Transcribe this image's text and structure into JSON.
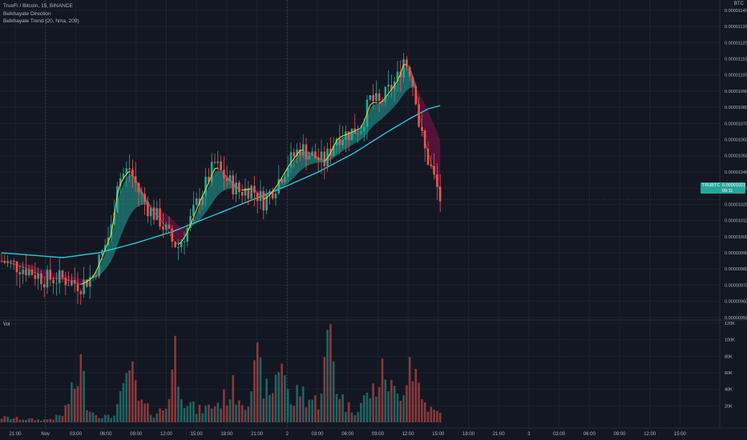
{
  "header": {
    "symbol_line": "TrueFi / Bitcoin, 15, BINANCE",
    "indicator_1": "Belkhayate Direction",
    "indicator_2": "Belkhayate Trend (20, hma, 209)",
    "volume_label": "Vol",
    "unit_label": "BTC"
  },
  "price_tag": {
    "symbol": "TRUBTC",
    "value": "0.00001023",
    "countdown": "09:11",
    "color": "#26a69a"
  },
  "colors": {
    "background": "#131722",
    "up": "#26a69a",
    "down": "#ef5350",
    "trend_line": "#26c6da",
    "band_bull": "#26a69a",
    "band_bear": "#880e4f",
    "direction_up": "#cddc39",
    "direction_down": "#ef5350",
    "grid": "#1e222d"
  },
  "chart_data": {
    "type": "candlestick",
    "price_axis": {
      "range": [
        9.494e-06,
        1.1444e-05
      ],
      "ticks": [
        "0.00000950",
        "0.00000960",
        "0.00000970",
        "0.00000980",
        "0.00000990",
        "0.00001000",
        "0.00001010",
        "0.00001020",
        "0.00001030",
        "0.00001040",
        "0.00001050",
        "0.00001060",
        "0.00001070",
        "0.00001080",
        "0.00001090",
        "0.00001100",
        "0.00001110",
        "0.00001120",
        "0.00001130",
        "0.00001140"
      ]
    },
    "volume_axis": {
      "range": [
        0,
        120000
      ],
      "ticks": [
        "20K",
        "40K",
        "60K",
        "80K",
        "100K",
        "120K"
      ]
    },
    "time_axis": [
      "21:00",
      "Nov",
      "03:00",
      "06:00",
      "09:00",
      "12:00",
      "15:00",
      "18:00",
      "21:00",
      "2",
      "03:00",
      "06:00",
      "09:00",
      "12:00",
      "15:00",
      "18:00",
      "21:00",
      "3",
      "03:00",
      "06:00",
      "09:00",
      "12:00",
      "15:00"
    ],
    "last_price": 1.023e-05,
    "series": [
      {
        "name": "Price",
        "anchors": [
          [
            0,
            9.85e-06
          ],
          [
            8,
            9.8e-06
          ],
          [
            14,
            9.74e-06
          ],
          [
            20,
            9.74e-06
          ],
          [
            26,
            9.7e-06
          ],
          [
            30,
            9.76e-06
          ],
          [
            33,
            9.9e-06
          ],
          [
            36,
            1.005e-05
          ],
          [
            38,
            1.035e-05
          ],
          [
            42,
            1.042e-05
          ],
          [
            45,
            1.028e-05
          ],
          [
            48,
            1.018e-05
          ],
          [
            52,
            1.01e-05
          ],
          [
            56,
            9.97e-06
          ],
          [
            58,
            9.94e-06
          ],
          [
            61,
            1.005e-05
          ],
          [
            64,
            1.02e-05
          ],
          [
            67,
            1.032e-05
          ],
          [
            70,
            1.045e-05
          ],
          [
            74,
            1.035e-05
          ],
          [
            78,
            1.028e-05
          ],
          [
            82,
            1.03e-05
          ],
          [
            86,
            1.022e-05
          ],
          [
            90,
            1.032e-05
          ],
          [
            94,
            1.045e-05
          ],
          [
            98,
            1.055e-05
          ],
          [
            102,
            1.05e-05
          ],
          [
            106,
            1.046e-05
          ],
          [
            110,
            1.062e-05
          ],
          [
            114,
            1.064e-05
          ],
          [
            118,
            1.068e-05
          ],
          [
            121,
            1.085e-05
          ],
          [
            124,
            1.082e-05
          ],
          [
            127,
            1.09e-05
          ],
          [
            130,
            1.098e-05
          ],
          [
            132,
            1.11e-05
          ],
          [
            134,
            1.103e-05
          ],
          [
            136,
            1.087e-05
          ],
          [
            137,
            1.07e-05
          ],
          [
            139,
            1.053e-05
          ],
          [
            141,
            1.042e-05
          ],
          [
            143,
            1.03e-05
          ],
          [
            144,
            1.023e-05
          ]
        ]
      },
      {
        "name": "Volume",
        "anchors": [
          [
            0,
            6000
          ],
          [
            8,
            4000
          ],
          [
            14,
            3000
          ],
          [
            17,
            5000
          ],
          [
            20,
            9000
          ],
          [
            24,
            42000
          ],
          [
            26,
            70000
          ],
          [
            28,
            26000
          ],
          [
            30,
            12000
          ],
          [
            33,
            8000
          ],
          [
            36,
            6000
          ],
          [
            40,
            35000
          ],
          [
            42,
            68000
          ],
          [
            45,
            25000
          ],
          [
            50,
            10000
          ],
          [
            54,
            18000
          ],
          [
            57,
            86000
          ],
          [
            60,
            30000
          ],
          [
            64,
            14000
          ],
          [
            68,
            18000
          ],
          [
            72,
            25000
          ],
          [
            76,
            40000
          ],
          [
            80,
            24000
          ],
          [
            84,
            67000
          ],
          [
            88,
            28000
          ],
          [
            92,
            84000
          ],
          [
            95,
            18000
          ],
          [
            98,
            42000
          ],
          [
            100,
            30000
          ],
          [
            104,
            25000
          ],
          [
            108,
            110000
          ],
          [
            110,
            45000
          ],
          [
            113,
            20000
          ],
          [
            116,
            15000
          ],
          [
            119,
            28000
          ],
          [
            122,
            38000
          ],
          [
            126,
            62000
          ],
          [
            128,
            40000
          ],
          [
            130,
            32000
          ],
          [
            132,
            48000
          ],
          [
            134,
            80000
          ],
          [
            136,
            60000
          ],
          [
            138,
            28000
          ],
          [
            141,
            15000
          ],
          [
            144,
            10000
          ]
        ]
      },
      {
        "name": "Trend",
        "anchors": [
          [
            0,
            9.9e-06
          ],
          [
            20,
            9.87e-06
          ],
          [
            32,
            9.9e-06
          ],
          [
            44,
            9.96e-06
          ],
          [
            56,
            1.003e-05
          ],
          [
            68,
            1.012e-05
          ],
          [
            80,
            1.021e-05
          ],
          [
            92,
            1.03e-05
          ],
          [
            104,
            1.04e-05
          ],
          [
            116,
            1.052e-05
          ],
          [
            126,
            1.064e-05
          ],
          [
            134,
            1.073e-05
          ],
          [
            140,
            1.079e-05
          ],
          [
            144,
            1.081e-05
          ]
        ]
      }
    ]
  }
}
